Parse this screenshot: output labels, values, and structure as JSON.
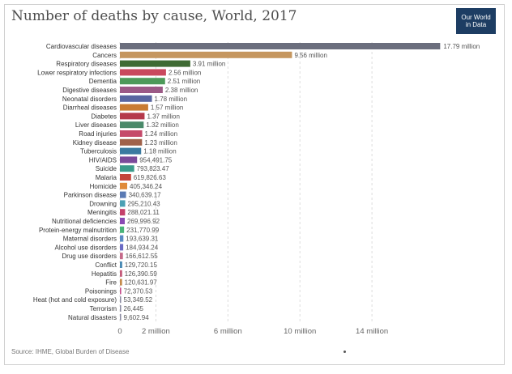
{
  "chart_data": {
    "type": "bar",
    "orientation": "horizontal",
    "title": "Number of deaths by cause, World, 2017",
    "source": "Source: IHME, Global Burden of Disease",
    "xlim": [
      0,
      18000000
    ],
    "x_ticks": [
      {
        "value": 0,
        "label": "0"
      },
      {
        "value": 2000000,
        "label": "2 million"
      },
      {
        "value": 6000000,
        "label": "6 million"
      },
      {
        "value": 10000000,
        "label": "10 million"
      },
      {
        "value": 14000000,
        "label": "14 million"
      }
    ],
    "categories": [
      "Cardiovascular diseases",
      "Cancers",
      "Respiratory diseases",
      "Lower respiratory infections",
      "Dementia",
      "Digestive diseases",
      "Neonatal disorders",
      "Diarrheal diseases",
      "Diabetes",
      "Liver diseases",
      "Road injuries",
      "Kidney disease",
      "Tuberculosis",
      "HIV/AIDS",
      "Suicide",
      "Malaria",
      "Homicide",
      "Parkinson disease",
      "Drowning",
      "Meningitis",
      "Nutritional deficiencies",
      "Protein-energy malnutrition",
      "Maternal disorders",
      "Alcohol use disorders",
      "Drug use disorders",
      "Conflict",
      "Hepatitis",
      "Fire",
      "Poisonings",
      "Heat (hot and cold exposure)",
      "Terrorism",
      "Natural disasters"
    ],
    "values": [
      17790000,
      9560000,
      3910000,
      2560000,
      2510000,
      2380000,
      1780000,
      1570000,
      1370000,
      1320000,
      1240000,
      1230000,
      1180000,
      954491.75,
      793823.47,
      619826.63,
      405346.24,
      340639.17,
      295210.43,
      288021.11,
      269996.92,
      231770.99,
      193639.31,
      184934.24,
      166612.55,
      129720.15,
      126390.59,
      120631.97,
      72370.53,
      53349.52,
      26445,
      9602.94
    ],
    "value_labels": [
      "17.79 million",
      "9.56 million",
      "3.91 million",
      "2.56 million",
      "2.51 million",
      "2.38 million",
      "1.78 million",
      "1.57 million",
      "1.37 million",
      "1.32 million",
      "1.24 million",
      "1.23 million",
      "1.18 million",
      "954,491.75",
      "793,823.47",
      "619,826.63",
      "405,346.24",
      "340,639.17",
      "295,210.43",
      "288,021.11",
      "269,996.92",
      "231,770.99",
      "193,639.31",
      "184,934.24",
      "166,612.55",
      "129,720.15",
      "126,390.59",
      "120,631.97",
      "72,370.53",
      "53,349.52",
      "26,445",
      "9,602.94"
    ],
    "colors": [
      "#6b6e7d",
      "#c5965f",
      "#3f6b34",
      "#c9495e",
      "#4d9a5a",
      "#9b5a86",
      "#5866a0",
      "#c97c32",
      "#b5394a",
      "#4a8a6a",
      "#c54a6a",
      "#a0624a",
      "#3a7aa0",
      "#7a4a9a",
      "#3a9a8a",
      "#c4443a",
      "#e08a3a",
      "#5a7ab4",
      "#4aa0b4",
      "#c4406a",
      "#8a4ab4",
      "#4ab47a",
      "#5a8ac4",
      "#6a6ac4",
      "#c46a8a",
      "#4a8ab4",
      "#c45a7a",
      "#c48a4a",
      "#c44a8a",
      "#8a8aa0",
      "#8a8aa0",
      "#8a8aa0"
    ]
  },
  "logo": {
    "line1": "Our World",
    "line2": "in Data",
    "color": "#1d3d63"
  }
}
